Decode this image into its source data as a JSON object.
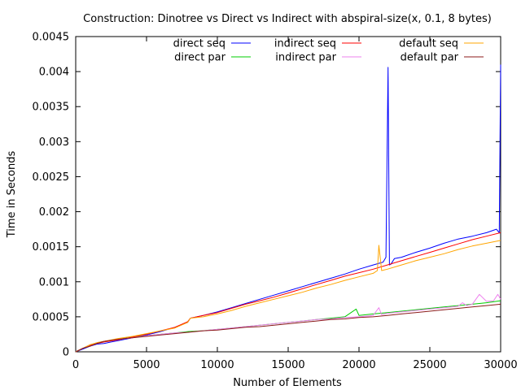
{
  "chart_data": {
    "type": "line",
    "title": "Construction: Dinotree vs Direct vs Indirect with abspiral-size(x, 0.1, 8 bytes)",
    "xlabel": "Number of Elements",
    "ylabel": "Time in Seconds",
    "xlim": [
      0,
      30000
    ],
    "ylim": [
      0,
      0.0045
    ],
    "xticks": [
      0,
      5000,
      10000,
      15000,
      20000,
      25000,
      30000
    ],
    "xtick_labels": [
      "0",
      "5000",
      "10000",
      "15000",
      "20000",
      "25000",
      "30000"
    ],
    "yticks": [
      0,
      0.0005,
      0.001,
      0.0015,
      0.002,
      0.0025,
      0.003,
      0.0035,
      0.004,
      0.0045
    ],
    "ytick_labels": [
      "0",
      "0.0005",
      "0.001",
      "0.0015",
      "0.002",
      "0.0025",
      "0.003",
      "0.0035",
      "0.004",
      "0.0045"
    ],
    "grid": false,
    "legend_position": "top (three columns)",
    "series": [
      {
        "name": "direct seq",
        "color": "#0000ff",
        "x": [
          0,
          500,
          1000,
          1500,
          2000,
          2500,
          3000,
          4000,
          5000,
          6000,
          7000,
          7900,
          8100,
          9000,
          10000,
          11000,
          12000,
          13000,
          14000,
          15000,
          16000,
          17000,
          18000,
          19000,
          20000,
          21000,
          21700,
          21900,
          22050,
          22150,
          22250,
          22500,
          23000,
          24000,
          25000,
          26000,
          26500,
          27000,
          28000,
          29000,
          29700,
          29900,
          30000
        ],
        "y": [
          0,
          4e-05,
          8e-05,
          0.00011,
          0.00012,
          0.00014,
          0.00016,
          0.0002,
          0.00024,
          0.00029,
          0.00035,
          0.00042,
          0.00048,
          0.00052,
          0.00057,
          0.00063,
          0.00069,
          0.00075,
          0.00081,
          0.00087,
          0.00093,
          0.00099,
          0.00105,
          0.00111,
          0.00118,
          0.00124,
          0.00128,
          0.00135,
          0.00406,
          0.00124,
          0.00125,
          0.00133,
          0.00135,
          0.00142,
          0.00148,
          0.00155,
          0.00158,
          0.00161,
          0.00165,
          0.0017,
          0.00175,
          0.0017,
          0.0041
        ]
      },
      {
        "name": "direct par",
        "color": "#00cc00",
        "x": [
          0,
          500,
          1000,
          1500,
          2000,
          3000,
          4000,
          5000,
          6000,
          7000,
          8000,
          9000,
          10000,
          11000,
          12000,
          13000,
          14000,
          15000,
          16000,
          17000,
          18000,
          19000,
          19800,
          20000,
          21000,
          22000,
          23000,
          24000,
          25000,
          26000,
          27000,
          28000,
          29000,
          29700,
          30000
        ],
        "y": [
          0,
          5e-05,
          0.0001,
          0.00013,
          0.00015,
          0.00018,
          0.00021,
          0.00023,
          0.00025,
          0.00027,
          0.00029,
          0.0003,
          0.00032,
          0.00034,
          0.00036,
          0.00038,
          0.0004,
          0.00042,
          0.00044,
          0.00046,
          0.00048,
          0.0005,
          0.00061,
          0.00052,
          0.00054,
          0.00056,
          0.00058,
          0.0006,
          0.00062,
          0.00064,
          0.00066,
          0.00068,
          0.0007,
          0.00072,
          0.00073
        ]
      },
      {
        "name": "indirect seq",
        "color": "#ff0000",
        "x": [
          0,
          500,
          1000,
          1500,
          2000,
          3000,
          4000,
          5000,
          6000,
          7000,
          7900,
          8100,
          9000,
          10000,
          11000,
          12000,
          13000,
          14000,
          15000,
          16000,
          17000,
          18000,
          19000,
          20000,
          21000,
          22000,
          23000,
          24000,
          25000,
          26000,
          27000,
          28000,
          29000,
          30000
        ],
        "y": [
          0,
          5e-05,
          9e-05,
          0.00012,
          0.00014,
          0.00017,
          0.00021,
          0.00025,
          0.0003,
          0.00035,
          0.00043,
          0.00048,
          0.00052,
          0.00056,
          0.00062,
          0.00068,
          0.00073,
          0.00078,
          0.00084,
          0.0009,
          0.00096,
          0.00102,
          0.00108,
          0.00113,
          0.00118,
          0.00124,
          0.0013,
          0.00136,
          0.00142,
          0.00148,
          0.00154,
          0.0016,
          0.00165,
          0.0017
        ]
      },
      {
        "name": "indirect par",
        "color": "#ee82ee",
        "x": [
          0,
          500,
          1000,
          1500,
          2000,
          3000,
          4000,
          5000,
          6000,
          7000,
          8000,
          9000,
          10000,
          11000,
          12000,
          13000,
          14000,
          15000,
          16000,
          17000,
          18000,
          19000,
          20000,
          21000,
          21400,
          21600,
          22000,
          23000,
          24000,
          25000,
          26000,
          27000,
          27300,
          27600,
          28000,
          28500,
          29000,
          29500,
          29800,
          30000
        ],
        "y": [
          0,
          5e-05,
          0.0001,
          0.00013,
          0.00015,
          0.00018,
          0.0002,
          0.00023,
          0.00025,
          0.00027,
          0.00028,
          0.0003,
          0.00032,
          0.00034,
          0.00036,
          0.00038,
          0.0004,
          0.00042,
          0.00044,
          0.00046,
          0.00047,
          0.00049,
          0.0005,
          0.00052,
          0.00063,
          0.00053,
          0.00055,
          0.00057,
          0.00059,
          0.00061,
          0.00063,
          0.00065,
          0.0007,
          0.00066,
          0.00068,
          0.00082,
          0.00072,
          0.00073,
          0.00082,
          0.00075
        ]
      },
      {
        "name": "default seq",
        "color": "#ffa500",
        "x": [
          0,
          500,
          1000,
          1500,
          2000,
          3000,
          4000,
          5000,
          6000,
          7000,
          7900,
          8100,
          9000,
          10000,
          11000,
          12000,
          13000,
          14000,
          15000,
          16000,
          17000,
          18000,
          19000,
          20000,
          21000,
          21300,
          21400,
          21600,
          22000,
          23000,
          24000,
          25000,
          26000,
          27000,
          28000,
          29000,
          30000
        ],
        "y": [
          0,
          5e-05,
          0.0001,
          0.00013,
          0.00015,
          0.00019,
          0.00022,
          0.00026,
          0.0003,
          0.00034,
          0.00042,
          0.00048,
          0.0005,
          0.00054,
          0.00059,
          0.00065,
          0.0007,
          0.00075,
          0.0008,
          0.00085,
          0.00091,
          0.00096,
          0.00102,
          0.00107,
          0.00112,
          0.00116,
          0.00152,
          0.00116,
          0.00118,
          0.00124,
          0.0013,
          0.00135,
          0.0014,
          0.00146,
          0.00151,
          0.00155,
          0.00159
        ]
      },
      {
        "name": "default par",
        "color": "#8b1a1a",
        "x": [
          0,
          500,
          1000,
          1500,
          2000,
          3000,
          4000,
          5000,
          6000,
          7000,
          8000,
          9000,
          10000,
          11000,
          12000,
          13000,
          14000,
          15000,
          16000,
          17000,
          18000,
          19000,
          20000,
          21000,
          22000,
          23000,
          24000,
          25000,
          26000,
          27000,
          28000,
          29000,
          30000
        ],
        "y": [
          0,
          5e-05,
          8e-05,
          0.00012,
          0.00015,
          0.00018,
          0.0002,
          0.00022,
          0.00024,
          0.00026,
          0.00028,
          0.0003,
          0.00031,
          0.00033,
          0.00035,
          0.00036,
          0.00038,
          0.0004,
          0.00042,
          0.00044,
          0.00046,
          0.00047,
          0.00049,
          0.0005,
          0.00052,
          0.00054,
          0.00056,
          0.00058,
          0.0006,
          0.00062,
          0.00064,
          0.00066,
          0.00068
        ]
      }
    ]
  }
}
